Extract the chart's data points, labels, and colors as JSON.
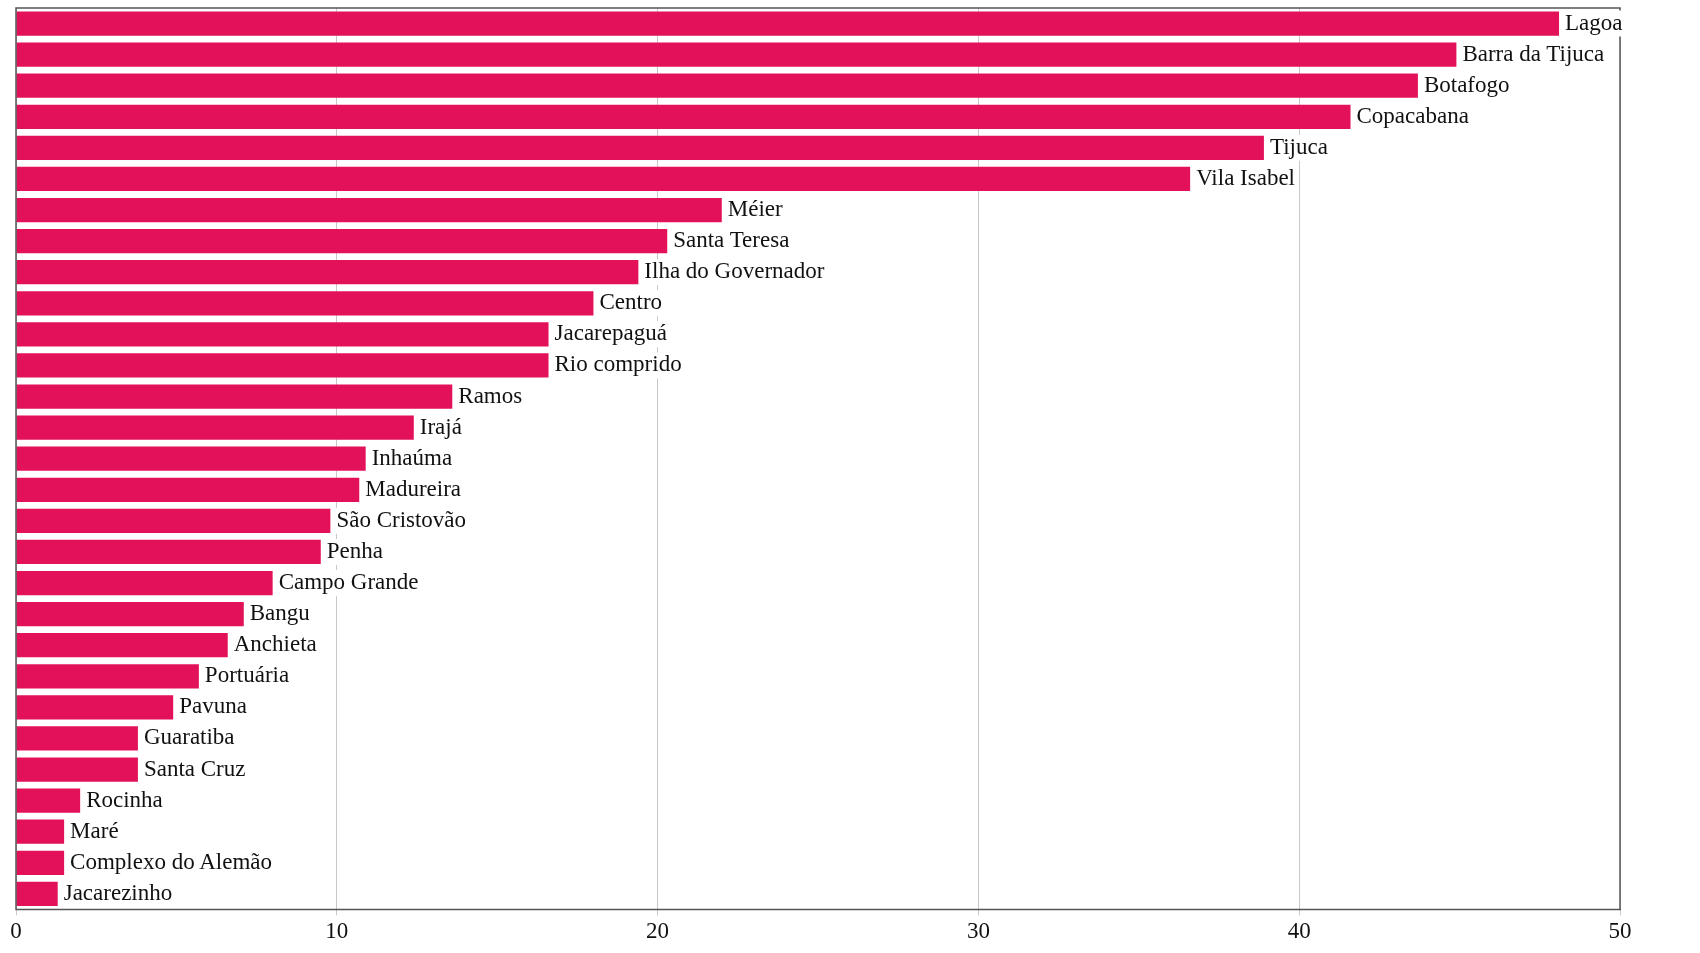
{
  "chart_data": {
    "type": "bar",
    "orientation": "horizontal",
    "categories": [
      "Lagoa",
      "Barra da Tijuca",
      "Botafogo",
      "Copacabana",
      "Tijuca",
      "Vila Isabel",
      "Méier",
      "Santa Teresa",
      "Ilha do Governador",
      "Centro",
      "Jacarepaguá",
      "Rio comprido",
      "Ramos",
      "Irajá",
      "Inhaúma",
      "Madureira",
      "São Cristovão",
      "Penha",
      "Campo Grande",
      "Bangu",
      "Anchieta",
      "Portuária",
      "Pavuna",
      "Guaratiba",
      "Santa Cruz",
      "Rocinha",
      "Maré",
      "Complexo do Alemão",
      "Jacarezinho"
    ],
    "values": [
      48.1,
      44.9,
      43.7,
      41.6,
      38.9,
      36.6,
      22.0,
      20.3,
      19.4,
      18.0,
      16.6,
      16.6,
      13.6,
      12.4,
      10.9,
      10.7,
      9.8,
      9.5,
      8.0,
      7.1,
      6.6,
      5.7,
      4.9,
      3.8,
      3.8,
      2.0,
      1.5,
      1.5,
      1.3
    ],
    "color": "#e3105a",
    "xlim": [
      0,
      50
    ],
    "xticks": [
      0,
      10,
      20,
      30,
      40,
      50
    ],
    "grid": "x"
  }
}
